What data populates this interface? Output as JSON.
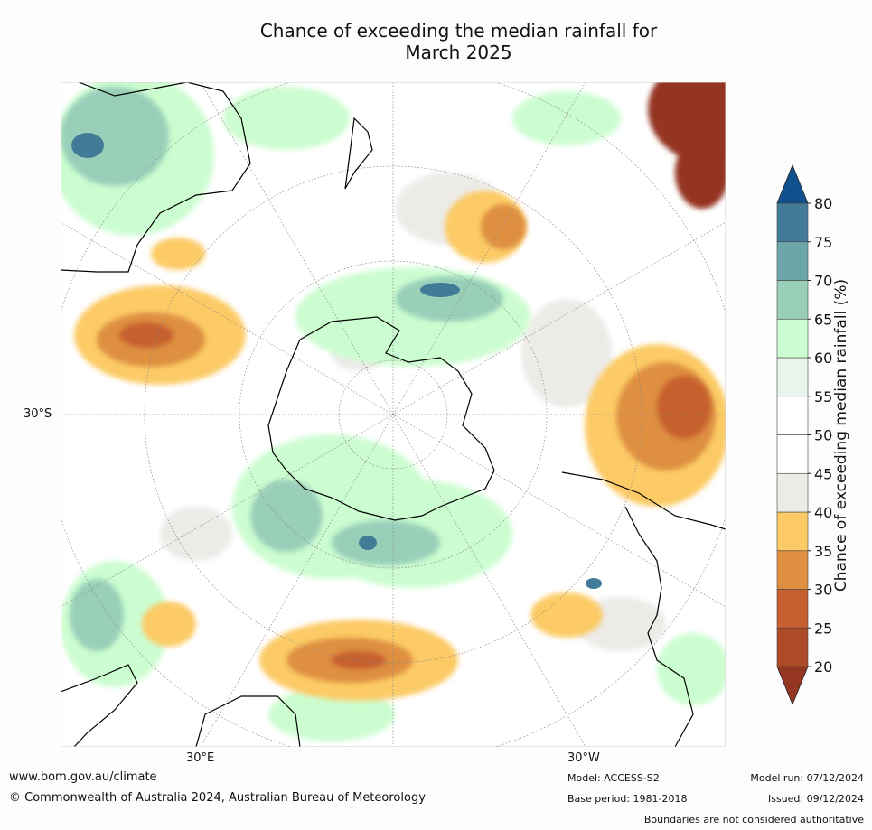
{
  "title_line1": "Chance of exceeding the median rainfall for",
  "title_line2": "March 2025",
  "map": {
    "projection": "south polar stereographic",
    "lat_label": "30°S",
    "lon_labels": [
      "30°E",
      "30°W"
    ],
    "colors": {
      "ocean_base": "#ffffff",
      "land_outline": "#000000",
      "green_light": "#c9f5cb",
      "green_mid": "#98d0b9",
      "teal": "#6ea7aa",
      "blue": "#3e7a9c",
      "orange_light": "#fbc867",
      "orange": "#e0913e",
      "rust": "#c4612f",
      "brown": "#953418"
    }
  },
  "colorbar": {
    "title": "Chance of exceeding median rainfall (%)",
    "ticks": [
      "20",
      "25",
      "30",
      "35",
      "40",
      "45",
      "50",
      "55",
      "60",
      "65",
      "70",
      "75",
      "80"
    ],
    "colors": [
      "#943621",
      "#ad4a28",
      "#c6602f",
      "#de8f3f",
      "#fccb66",
      "#ecebe8",
      "#ffffff",
      "#ffffff",
      "#e9f5ec",
      "#ccfdd0",
      "#99cfb9",
      "#6da6a9",
      "#417b98",
      "#10508e"
    ]
  },
  "footer": {
    "url": "www.bom.gov.au/climate",
    "copyright": "© Commonwealth of Australia 2024, Australian Bureau of Meteorology",
    "model": "Model: ACCESS-S2",
    "base_period": "Base period: 1981-2018",
    "model_run": "Model run: 07/12/2024",
    "issued": "Issued: 09/12/2024",
    "disclaimer": "Boundaries are not considered authoritative"
  }
}
